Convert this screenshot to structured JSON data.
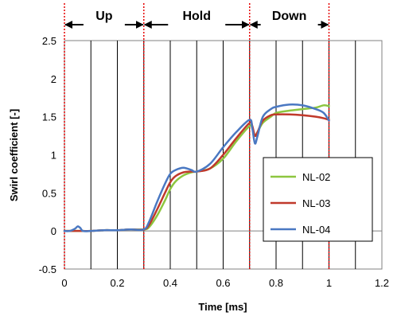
{
  "chart_data": {
    "type": "line",
    "xlabel": "Time [ms]",
    "ylabel": "Swirl coefficient [-]",
    "xlim": [
      0,
      1.2
    ],
    "ylim": [
      -0.5,
      2.5
    ],
    "x_ticks": [
      0,
      0.1,
      0.2,
      0.3,
      0.4,
      0.5,
      0.6,
      0.7,
      0.8,
      0.9,
      1.0,
      1.1,
      1.2
    ],
    "x_tick_labels": [
      "0",
      "",
      "0.2",
      "",
      "0.4",
      "",
      "0.6",
      "",
      "0.8",
      "",
      "1",
      "",
      "1.2"
    ],
    "y_ticks": [
      -0.5,
      0,
      0.5,
      1,
      1.5,
      2,
      2.5
    ],
    "y_tick_labels": [
      "-0.5",
      "0",
      "0.5",
      "1",
      "1.5",
      "2",
      "2.5"
    ],
    "grid": "vertical",
    "legend": "right",
    "phase_markers": [
      0.0,
      0.3,
      0.7,
      1.0
    ],
    "phases": [
      {
        "label": "Up",
        "start": 0.0,
        "end": 0.3
      },
      {
        "label": "Hold",
        "start": 0.3,
        "end": 0.7
      },
      {
        "label": "Down",
        "start": 0.7,
        "end": 1.0
      }
    ],
    "series": [
      {
        "name": "NL-02",
        "color": "#8dc63f",
        "x": [
          0,
          0.03,
          0.05,
          0.07,
          0.1,
          0.15,
          0.2,
          0.25,
          0.3,
          0.32,
          0.35,
          0.38,
          0.4,
          0.42,
          0.45,
          0.48,
          0.5,
          0.55,
          0.6,
          0.65,
          0.7,
          0.71,
          0.72,
          0.73,
          0.75,
          0.78,
          0.8,
          0.85,
          0.9,
          0.95,
          0.98,
          1.0
        ],
        "y": [
          0,
          0,
          0,
          0,
          0,
          0.01,
          0.01,
          0.02,
          0.02,
          0.05,
          0.2,
          0.4,
          0.55,
          0.65,
          0.73,
          0.77,
          0.78,
          0.82,
          0.95,
          1.18,
          1.38,
          1.35,
          1.25,
          1.3,
          1.42,
          1.5,
          1.55,
          1.58,
          1.6,
          1.62,
          1.65,
          1.64
        ]
      },
      {
        "name": "NL-03",
        "color": "#c0392b",
        "x": [
          0,
          0.03,
          0.05,
          0.07,
          0.1,
          0.15,
          0.2,
          0.25,
          0.3,
          0.32,
          0.35,
          0.38,
          0.4,
          0.42,
          0.45,
          0.48,
          0.5,
          0.55,
          0.6,
          0.65,
          0.7,
          0.71,
          0.72,
          0.73,
          0.75,
          0.78,
          0.8,
          0.85,
          0.9,
          0.95,
          0.98,
          1.0
        ],
        "y": [
          0,
          0,
          0,
          0,
          0,
          0.01,
          0.01,
          0.02,
          0.02,
          0.08,
          0.28,
          0.5,
          0.64,
          0.72,
          0.77,
          0.78,
          0.78,
          0.82,
          1.0,
          1.22,
          1.42,
          1.38,
          1.25,
          1.3,
          1.45,
          1.52,
          1.53,
          1.53,
          1.52,
          1.5,
          1.48,
          1.46
        ]
      },
      {
        "name": "NL-04",
        "color": "#4a78c2",
        "x": [
          0,
          0.02,
          0.04,
          0.05,
          0.06,
          0.07,
          0.1,
          0.15,
          0.2,
          0.25,
          0.3,
          0.32,
          0.35,
          0.38,
          0.4,
          0.42,
          0.45,
          0.48,
          0.5,
          0.55,
          0.6,
          0.65,
          0.7,
          0.71,
          0.72,
          0.73,
          0.75,
          0.78,
          0.8,
          0.85,
          0.9,
          0.95,
          0.98,
          1.0
        ],
        "y": [
          0,
          0,
          0.03,
          0.06,
          0.04,
          0,
          0,
          0.01,
          0.01,
          0.02,
          0.02,
          0.12,
          0.38,
          0.62,
          0.75,
          0.8,
          0.83,
          0.8,
          0.78,
          0.88,
          1.1,
          1.3,
          1.46,
          1.35,
          1.15,
          1.25,
          1.5,
          1.6,
          1.63,
          1.66,
          1.65,
          1.6,
          1.55,
          1.45
        ]
      }
    ]
  }
}
